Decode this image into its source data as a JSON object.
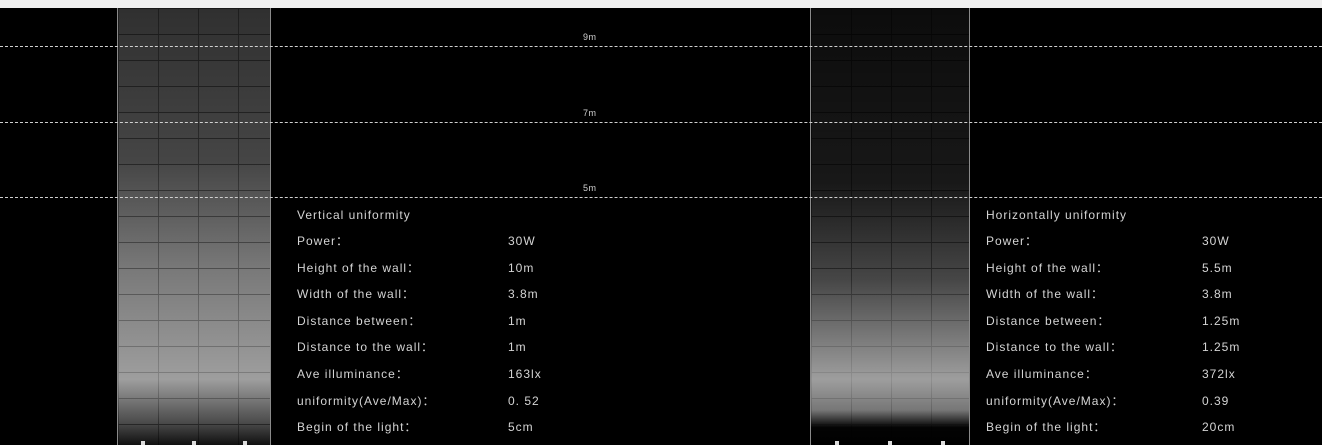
{
  "height_markers": [
    {
      "label": "9m"
    },
    {
      "label": "7m"
    },
    {
      "label": "5m"
    }
  ],
  "left_spec": {
    "title": "Vertical uniformity",
    "rows": [
      {
        "key": "Power：",
        "value": "30W"
      },
      {
        "key": "Height of the wall：",
        "value": "10m"
      },
      {
        "key": "Width of the wall：",
        "value": "3.8m"
      },
      {
        "key": "Distance between：",
        "value": "1m"
      },
      {
        "key": "Distance to the wall：",
        "value": "1m"
      },
      {
        "key": "Ave illuminance：",
        "value": "163lx"
      },
      {
        "key": "uniformity(Ave/Max)：",
        "value": "0. 52"
      },
      {
        "key": "Begin of the light：",
        "value": "5cm"
      }
    ]
  },
  "right_spec": {
    "title": "Horizontally uniformity",
    "rows": [
      {
        "key": "Power：",
        "value": "30W"
      },
      {
        "key": "Height of the wall：",
        "value": "5.5m"
      },
      {
        "key": "Width of the wall：",
        "value": "3.8m"
      },
      {
        "key": "Distance between：",
        "value": "1.25m"
      },
      {
        "key": "Distance to the wall：",
        "value": "1.25m"
      },
      {
        "key": "Ave illuminance：",
        "value": "372lx"
      },
      {
        "key": "uniformity(Ave/Max)：",
        "value": "0.39"
      },
      {
        "key": "Begin of the light：",
        "value": "20cm"
      }
    ]
  }
}
